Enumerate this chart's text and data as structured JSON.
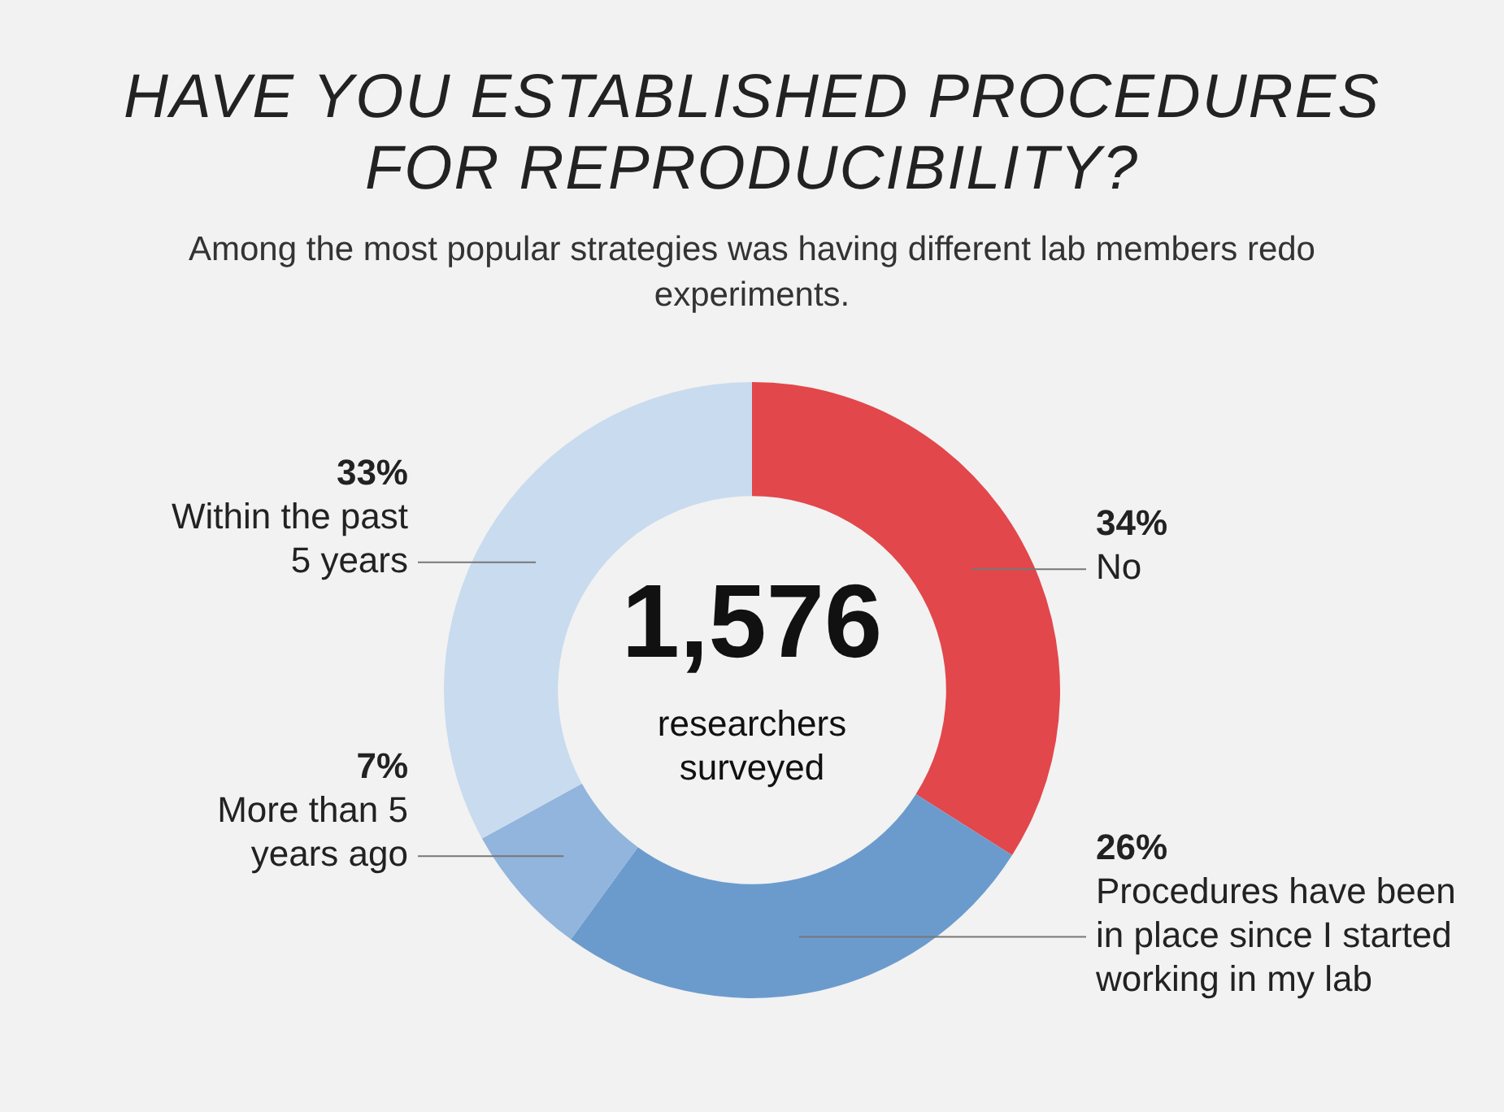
{
  "chart_data": {
    "type": "donut",
    "title": "HAVE YOU ESTABLISHED PROCEDURES FOR REPRODUCIBILITY?",
    "subtitle": "Among the most popular strategies was having different lab members redo experiments.",
    "categories": [
      "No",
      "Procedures have been in place since I started working in my lab",
      "More than 5 years ago",
      "Within the past 5 years"
    ],
    "values": [
      34,
      26,
      7,
      33
    ],
    "value_labels": [
      "34%",
      "26%",
      "7%",
      "33%"
    ],
    "colors": [
      "#e2474b",
      "#6b9bcd",
      "#91b5dc",
      "#c9dbee"
    ],
    "annotations": [
      "1,576",
      "researchers surveyed"
    ],
    "legend": false
  }
}
